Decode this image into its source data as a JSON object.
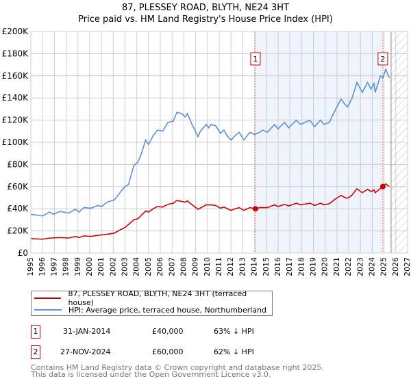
{
  "title": "87, PLESSEY ROAD, BLYTH, NE24 3HT",
  "subtitle": "Price paid vs. HM Land Registry's House Price Index (HPI)",
  "colors": {
    "price": "#cc0000",
    "hpi": "#5b8fd4",
    "shade": "#eef3fc"
  },
  "chart_data": {
    "type": "line",
    "title": "87, PLESSEY ROAD, BLYTH, NE24 3HT — Price paid vs. HM Land Registry's House Price Index (HPI)",
    "xlim": [
      1995,
      2027
    ],
    "ylim": [
      0,
      200000
    ],
    "x_ticks": [
      "1995",
      "1996",
      "1997",
      "1998",
      "1999",
      "2000",
      "2001",
      "2002",
      "2003",
      "2004",
      "2005",
      "2006",
      "2007",
      "2008",
      "2009",
      "2010",
      "2011",
      "2012",
      "2013",
      "2014",
      "2015",
      "2016",
      "2017",
      "2018",
      "2019",
      "2020",
      "2021",
      "2022",
      "2023",
      "2024",
      "2025",
      "2026",
      "2027"
    ],
    "y_ticks": [
      {
        "v": 0,
        "l": "£0"
      },
      {
        "v": 20000,
        "l": "£20K"
      },
      {
        "v": 40000,
        "l": "£40K"
      },
      {
        "v": 60000,
        "l": "£60K"
      },
      {
        "v": 80000,
        "l": "£80K"
      },
      {
        "v": 100000,
        "l": "£100K"
      },
      {
        "v": 120000,
        "l": "£120K"
      },
      {
        "v": 140000,
        "l": "£140K"
      },
      {
        "v": 160000,
        "l": "£160K"
      },
      {
        "v": 180000,
        "l": "£180K"
      },
      {
        "v": 200000,
        "l": "£200K"
      }
    ],
    "grid": true,
    "shaded_range": [
      2014.08,
      2024.9
    ],
    "forecast_start": 2025.6,
    "series": [
      {
        "name": "87, PLESSEY ROAD, BLYTH, NE24 3HT (terraced house)",
        "color": "#cc0000",
        "x": [
          1995,
          1996,
          1996.6,
          1997.5,
          1998.2,
          1998.8,
          1999.1,
          1999.5,
          2000.1,
          2000.7,
          2001.5,
          2002.1,
          2002.6,
          2003.0,
          2003.75,
          2004.1,
          2004.75,
          2005.0,
          2005.4,
          2005.75,
          2006.2,
          2006.65,
          2007.1,
          2007.4,
          2008.1,
          2008.3,
          2008.65,
          2009.2,
          2009.9,
          2010.3,
          2010.7,
          2011.1,
          2011.4,
          2012.0,
          2012.35,
          2012.7,
          2013.1,
          2013.6,
          2014.08,
          2014.45,
          2015.1,
          2015.7,
          2016.0,
          2016.55,
          2016.9,
          2017.55,
          2017.9,
          2018.7,
          2019.1,
          2019.6,
          2019.9,
          2020.35,
          2020.9,
          2021.35,
          2021.7,
          2021.9,
          2022.25,
          2022.7,
          2023.15,
          2023.6,
          2023.9,
          2024.15,
          2024.25,
          2024.9,
          2025.15,
          2025.45
        ],
        "y": [
          13000,
          12500,
          13500,
          14000,
          13500,
          15000,
          14000,
          15500,
          15000,
          16000,
          17000,
          18000,
          21000,
          23000,
          30000,
          31000,
          38000,
          37000,
          40000,
          42000,
          41500,
          44000,
          45000,
          47500,
          46000,
          47000,
          44000,
          39500,
          43500,
          43500,
          43000,
          40500,
          41500,
          38500,
          40000,
          41000,
          38500,
          41000,
          40000,
          41000,
          41000,
          43500,
          42000,
          44000,
          42500,
          45000,
          43500,
          45000,
          43000,
          45000,
          43500,
          44500,
          49000,
          52000,
          50000,
          49500,
          52000,
          58000,
          54500,
          57500,
          55500,
          57000,
          54500,
          60000,
          62500,
          60000
        ]
      },
      {
        "name": "HPI: Average price, terraced house, Northumberland",
        "color": "#5b8fd4",
        "x": [
          1995,
          1996,
          1996.6,
          1996.9,
          1997.5,
          1998.2,
          1998.8,
          1999.1,
          1999.5,
          2000.1,
          2000.7,
          2001.0,
          2001.5,
          2002.1,
          2002.6,
          2003.0,
          2003.3,
          2003.75,
          2004.1,
          2004.4,
          2004.75,
          2005.0,
          2005.4,
          2005.75,
          2006.2,
          2006.65,
          2007.1,
          2007.4,
          2007.8,
          2008.1,
          2008.3,
          2008.65,
          2009.2,
          2009.4,
          2009.9,
          2010.1,
          2010.3,
          2010.7,
          2011.1,
          2011.4,
          2011.6,
          2012.0,
          2012.35,
          2012.7,
          2013.1,
          2013.6,
          2014.0,
          2014.45,
          2014.7,
          2015.1,
          2015.7,
          2016.0,
          2016.55,
          2016.9,
          2017.55,
          2017.9,
          2018.7,
          2019.1,
          2019.6,
          2019.9,
          2020.35,
          2020.9,
          2021.35,
          2021.7,
          2021.9,
          2022.25,
          2022.7,
          2023.15,
          2023.6,
          2023.9,
          2024.15,
          2024.25,
          2024.7,
          2024.9,
          2025.15,
          2025.45
        ],
        "y": [
          35000,
          33500,
          37000,
          35000,
          37500,
          36000,
          39500,
          37000,
          41000,
          40500,
          43000,
          42000,
          46000,
          48000,
          55000,
          60000,
          62000,
          79000,
          82000,
          90000,
          102000,
          98000,
          106000,
          111000,
          110000,
          118000,
          119000,
          127000,
          126000,
          123000,
          126000,
          117000,
          105000,
          110000,
          116000,
          113000,
          116000,
          115000,
          108000,
          111000,
          107000,
          102000,
          106000,
          109000,
          102000,
          109000,
          107000,
          109000,
          111000,
          109000,
          116000,
          112000,
          118000,
          113000,
          120000,
          116000,
          120000,
          114000,
          120000,
          116000,
          118000,
          130000,
          139000,
          134000,
          132000,
          139000,
          154000,
          145000,
          154000,
          148000,
          153000,
          145000,
          160000,
          158000,
          166000,
          158000
        ]
      }
    ],
    "annotations": [
      {
        "label": "1",
        "x": 2014.08,
        "y": 40000
      },
      {
        "label": "2",
        "x": 2024.9,
        "y": 60000
      }
    ]
  },
  "legend": {
    "price_label": "87, PLESSEY ROAD, BLYTH, NE24 3HT (terraced house)",
    "hpi_label": "HPI: Average price, terraced house, Northumberland"
  },
  "transactions": [
    {
      "num": "1",
      "date": "31-JAN-2014",
      "price": "£40,000",
      "hpi": "63% ↓ HPI"
    },
    {
      "num": "2",
      "date": "27-NOV-2024",
      "price": "£60,000",
      "hpi": "62% ↓ HPI"
    }
  ],
  "footer": {
    "line1": "Contains HM Land Registry data © Crown copyright and database right 2025.",
    "line2": "This data is licensed under the Open Government Licence v3.0."
  }
}
